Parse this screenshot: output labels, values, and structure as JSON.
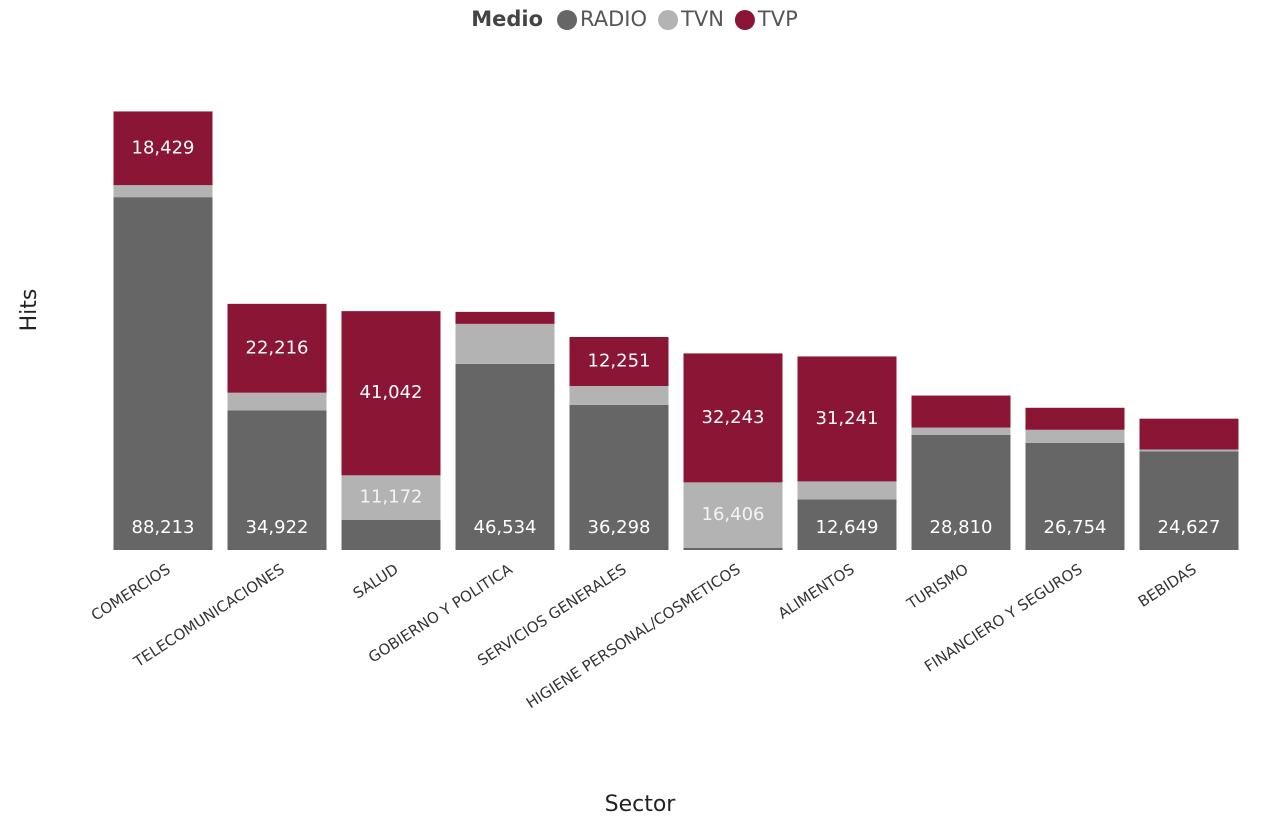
{
  "chart_data": {
    "type": "stacked_bar",
    "legend_title": "Medio",
    "x_label": "Sector",
    "y_label": "Hits",
    "categories": [
      "COMERCIOS",
      "TELECOMUNICACIONES",
      "SALUD",
      "GOBIERNO Y POLITICA",
      "SERVICIOS GENERALES",
      "HIGIENE PERSONAL/COSMETICOS",
      "ALIMENTOS",
      "TURISMO",
      "FINANCIERO Y SEGUROS",
      "BEBIDAS"
    ],
    "series": [
      {
        "name": "RADIO",
        "color": "#666666",
        "values": [
          88213,
          34922,
          7500,
          46534,
          36298,
          500,
          12649,
          28810,
          26754,
          24627
        ],
        "value_labels": [
          "88,213",
          "34,922",
          null,
          "46,534",
          "36,298",
          null,
          "12,649",
          "28,810",
          "26,754",
          "24,627"
        ]
      },
      {
        "name": "TVN",
        "color": "#b3b3b3",
        "values": [
          3000,
          4400,
          11172,
          10000,
          4700,
          16406,
          4500,
          1800,
          3300,
          500
        ],
        "value_labels": [
          null,
          null,
          "11,172",
          null,
          null,
          "16,406",
          null,
          null,
          null,
          null
        ]
      },
      {
        "name": "TVP",
        "color": "#8b1535",
        "values": [
          18429,
          22216,
          41042,
          3000,
          12251,
          32243,
          31241,
          8000,
          5500,
          7700
        ],
        "value_labels": [
          "18,429",
          "22,216",
          "41,042",
          null,
          "12,251",
          "32,243",
          "31,241",
          null,
          null,
          null
        ]
      }
    ],
    "ylim": [
      0,
      110000
    ],
    "legend_position": "top"
  }
}
